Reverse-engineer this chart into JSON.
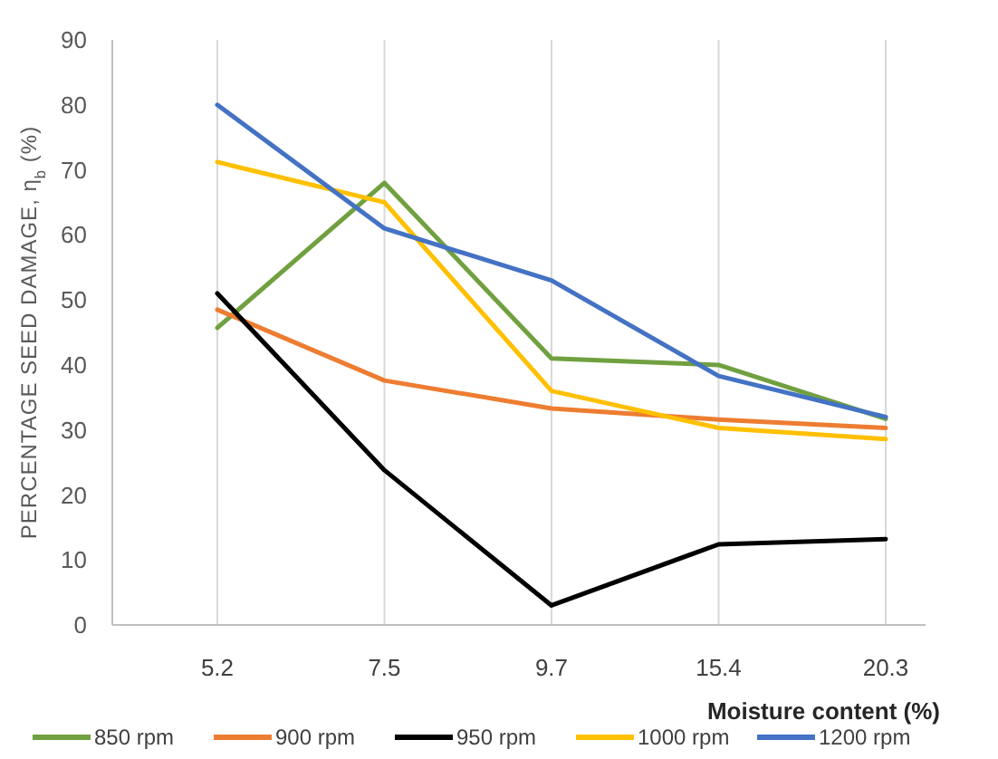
{
  "chart_data": {
    "type": "line",
    "xlabel": "Moisture content (%)",
    "ylabel": "PERCENTAGE SEED  DAMAGE, η$_{b}$ (%)",
    "categories": [
      "5.2",
      "7.5",
      "9.7",
      "15.4",
      "20.3"
    ],
    "series": [
      {
        "name": "850 rpm",
        "color": "#70a040",
        "values": [
          45.7,
          68,
          41,
          40,
          31.7
        ]
      },
      {
        "name": "900 rpm",
        "color": "#ed7d31",
        "values": [
          48.5,
          37.6,
          33.3,
          31.6,
          30.3
        ]
      },
      {
        "name": "950 rpm",
        "color": "#000000",
        "values": [
          51,
          23.8,
          3,
          12.4,
          13.2
        ]
      },
      {
        "name": "1000 rpm",
        "color": "#ffc000",
        "values": [
          71.2,
          65,
          36,
          30.3,
          28.6
        ]
      },
      {
        "name": "1200 rpm",
        "color": "#4472c4",
        "values": [
          80,
          61,
          53,
          38.3,
          32
        ]
      }
    ],
    "ylim": [
      0,
      90
    ],
    "yticks": [
      0,
      10,
      20,
      30,
      40,
      50,
      60,
      70,
      80,
      90
    ],
    "grid": "x",
    "legend": "bottom",
    "marker": "none",
    "line_style": "solid"
  }
}
